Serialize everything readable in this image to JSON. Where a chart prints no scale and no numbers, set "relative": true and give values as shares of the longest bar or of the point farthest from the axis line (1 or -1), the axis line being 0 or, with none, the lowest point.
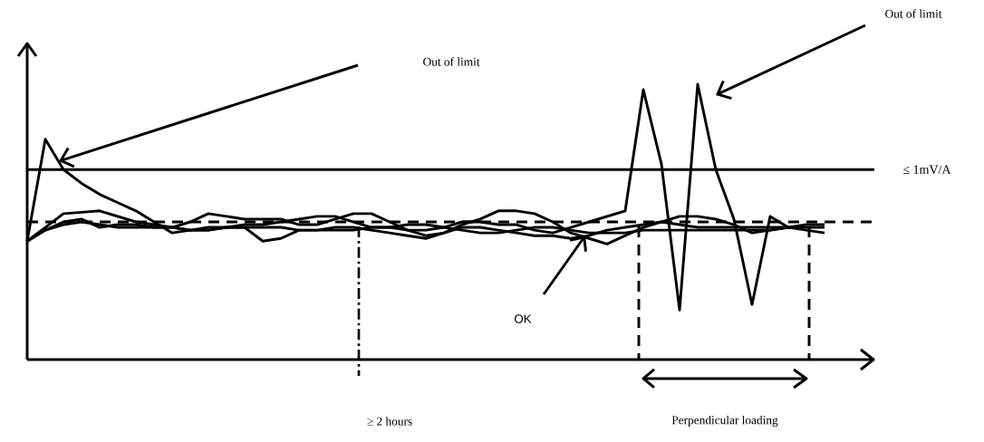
{
  "chart_data": {
    "type": "line",
    "relative": true,
    "line_style": "solid",
    "categories": [
      null,
      null,
      null,
      null,
      null,
      null,
      null,
      null,
      null,
      null,
      null,
      null,
      null,
      null,
      null,
      null,
      null,
      null,
      null,
      null,
      null,
      null,
      null,
      null,
      null,
      null,
      null,
      null,
      null,
      null,
      null,
      null,
      null,
      null,
      null,
      null,
      null,
      null,
      null,
      null,
      null,
      null,
      null,
      null,
      null
    ],
    "series": [
      {
        "color": "#000000",
        "values": [
          0.43,
          0.8,
          0.69,
          0.64,
          0.6,
          0.57,
          0.54,
          0.5,
          0.46,
          0.47,
          0.48,
          0.48,
          0.48,
          0.43,
          0.44,
          0.47,
          0.47,
          0.48,
          0.48,
          0.47,
          0.46,
          0.45,
          0.44,
          0.46,
          0.48,
          0.48,
          0.47,
          0.46,
          0.45,
          0.45,
          0.44,
          0.45,
          0.47,
          0.48,
          0.49,
          0.5,
          0.49,
          0.48,
          0.48,
          0.48,
          0.48,
          0.48,
          0.48,
          0.48,
          0.48
        ]
      },
      {
        "color": "#000000",
        "values": [
          0.43,
          0.48,
          0.53,
          0.535,
          0.54,
          0.52,
          0.5,
          0.49,
          0.48,
          0.5,
          0.53,
          0.52,
          0.51,
          0.51,
          0.51,
          0.49,
          0.49,
          0.51,
          0.53,
          0.53,
          0.5,
          0.47,
          0.45,
          0.46,
          0.49,
          0.51,
          0.54,
          0.54,
          0.53,
          0.5,
          0.46,
          0.44,
          0.42,
          0.45,
          0.48,
          0.5,
          0.52,
          0.52,
          0.51,
          0.49,
          0.46,
          0.47,
          0.48,
          0.49,
          0.49
        ]
      },
      {
        "color": "#000000",
        "values": [
          0.43,
          0.47,
          0.5,
          0.51,
          0.48,
          0.49,
          0.49,
          0.48,
          0.48,
          0.47,
          0.47,
          0.48,
          0.48,
          0.48,
          0.48,
          0.47,
          0.47,
          0.47,
          0.47,
          0.48,
          0.48,
          0.49,
          0.49,
          0.48,
          0.47,
          0.46,
          0.46,
          0.47,
          0.48,
          0.48,
          0.47,
          0.46,
          0.46,
          0.46,
          0.47,
          0.47,
          0.47,
          0.47,
          0.47,
          0.47,
          0.47,
          0.47,
          0.48,
          0.47,
          0.46
        ]
      },
      {
        "color": "#000000",
        "values": [
          0.43,
          0.47,
          0.49,
          0.5,
          0.49,
          0.48,
          0.48,
          0.48,
          0.48,
          0.47,
          0.47,
          0.48,
          0.49,
          0.49,
          0.5,
          0.51,
          0.52,
          0.52,
          0.5,
          0.48,
          0.48,
          0.47,
          0.47,
          0.48,
          0.5,
          0.5,
          0.49,
          0.49,
          0.47,
          0.46,
          0.48,
          0.5,
          0.52,
          0.54,
          0.98,
          0.71,
          0.18,
          1,
          0.69,
          0.51,
          0.2,
          0.52,
          0.48,
          null,
          null
        ]
      }
    ],
    "ref_lines": [
      {
        "axis": "y",
        "value": 0.69,
        "label": "≤ 1mV/A",
        "line_style": "solid"
      },
      {
        "axis": "y",
        "value": 0.5,
        "line_style": "dashed"
      }
    ],
    "annotations": [
      "Out of limit",
      "Out of limit",
      "OK",
      "≥ 2 hours",
      "Perpendicular loading"
    ]
  }
}
